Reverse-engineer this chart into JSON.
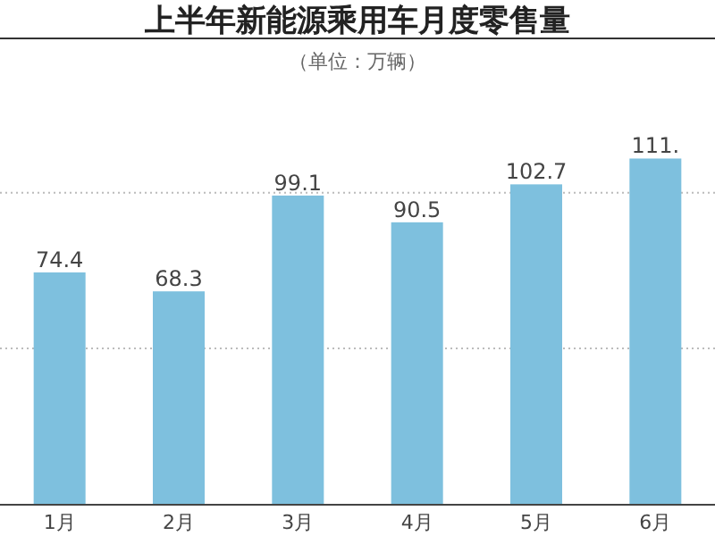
{
  "chart_data": {
    "type": "bar",
    "title": "上半年新能源乘用车月度零售量",
    "subtitle": "（单位：万辆）",
    "categories": [
      "1月",
      "2月",
      "3月",
      "4月",
      "5月",
      "6月"
    ],
    "values": [
      74.4,
      68.3,
      99.1,
      90.5,
      102.7,
      111
    ],
    "value_labels": [
      "74.4",
      "68.3",
      "99.1",
      "90.5",
      "102.7",
      "111."
    ],
    "color": "#7ec0de",
    "ref_lines": [
      {
        "axis": "y",
        "value": 50,
        "color": "#bbbbbb",
        "line_style": "dotted"
      },
      {
        "axis": "y",
        "value": 100,
        "color": "#bbbbbb",
        "line_style": "dotted"
      }
    ],
    "tick_labels": "x"
  }
}
